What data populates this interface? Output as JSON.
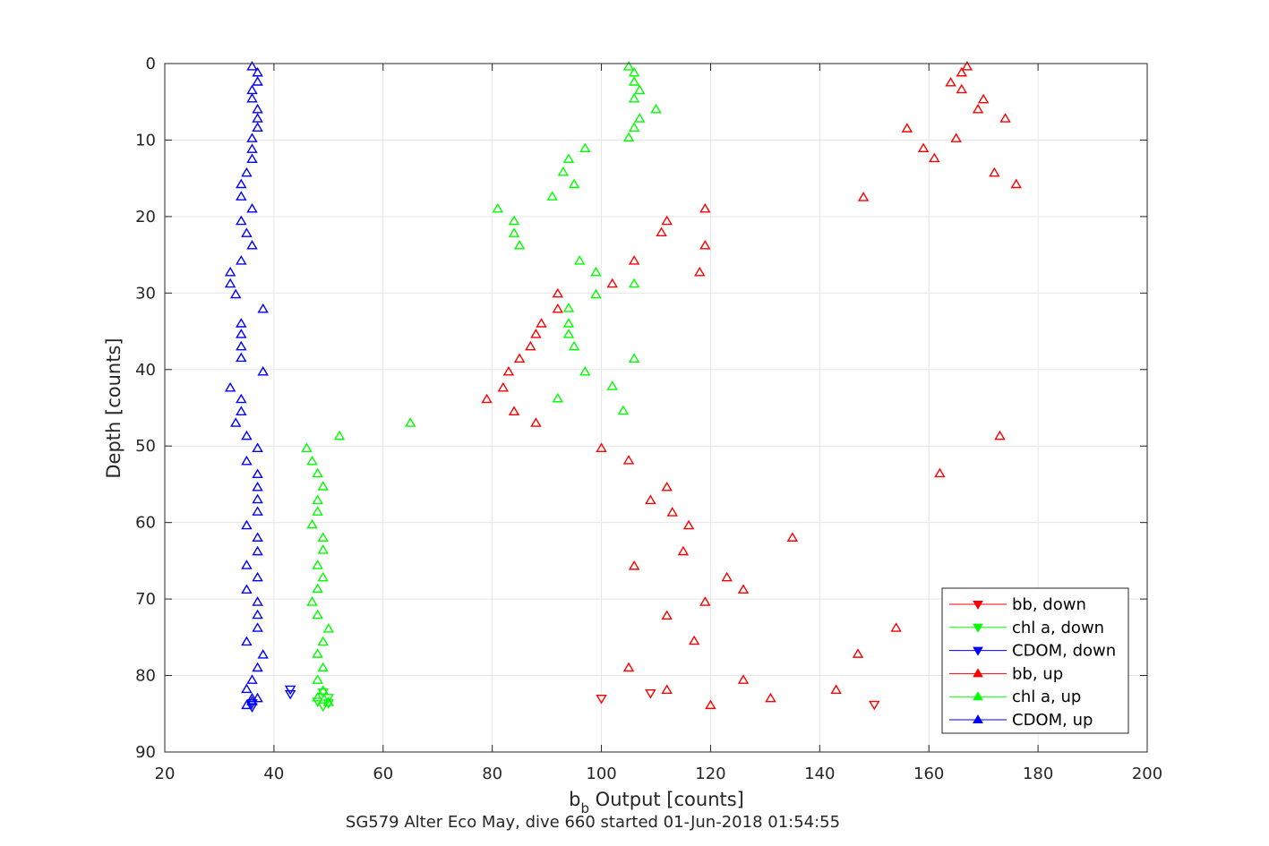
{
  "chart_data": {
    "type": "scatter",
    "title": "",
    "xlabel_main": "b",
    "xlabel_sub": "b",
    "xlabel_rest": " Output [counts]",
    "ylabel": "Depth [counts]",
    "caption": "SG579 Alter Eco May, dive 660 started 01-Jun-2018 01:54:55",
    "xlim": [
      20,
      200
    ],
    "ylim": [
      0,
      90
    ],
    "y_reversed": true,
    "grid": true,
    "x_ticks": [
      "20",
      "40",
      "60",
      "80",
      "100",
      "120",
      "140",
      "160",
      "180",
      "200"
    ],
    "y_ticks": [
      "0",
      "10",
      "20",
      "30",
      "40",
      "50",
      "60",
      "70",
      "80",
      "90"
    ],
    "legend_position": "bottom-right",
    "series": [
      {
        "name": "bb, down",
        "color": "#ff0000",
        "marker": "triangle-down",
        "points": [
          [
            100,
            83.0
          ],
          [
            109,
            82.3
          ],
          [
            150,
            83.8
          ]
        ]
      },
      {
        "name": "chl a, down",
        "color": "#00ff00",
        "marker": "triangle-down",
        "points": [
          [
            49,
            82.2
          ],
          [
            50,
            82.9
          ],
          [
            48,
            83.4
          ],
          [
            49,
            84.0
          ],
          [
            50,
            83.6
          ]
        ]
      },
      {
        "name": "CDOM, down",
        "color": "#0000ff",
        "marker": "triangle-down",
        "points": [
          [
            43,
            81.8
          ],
          [
            43,
            82.4
          ],
          [
            36,
            83.6
          ],
          [
            36,
            84.1
          ]
        ]
      },
      {
        "name": "bb, up",
        "color": "#ff0000",
        "marker": "triangle-up",
        "points": [
          [
            167,
            0.4
          ],
          [
            166,
            1.2
          ],
          [
            164,
            2.5
          ],
          [
            166,
            3.4
          ],
          [
            170,
            4.7
          ],
          [
            169,
            6.0
          ],
          [
            174,
            7.2
          ],
          [
            156,
            8.5
          ],
          [
            165,
            9.8
          ],
          [
            159,
            11.1
          ],
          [
            161,
            12.4
          ],
          [
            172,
            14.3
          ],
          [
            176,
            15.8
          ],
          [
            148,
            17.5
          ],
          [
            119,
            19.0
          ],
          [
            112,
            20.6
          ],
          [
            111,
            22.1
          ],
          [
            119,
            23.8
          ],
          [
            106,
            25.8
          ],
          [
            118,
            27.3
          ],
          [
            102,
            28.8
          ],
          [
            92,
            30.1
          ],
          [
            92,
            32.1
          ],
          [
            89,
            34.0
          ],
          [
            88,
            35.4
          ],
          [
            87,
            37.0
          ],
          [
            85,
            38.6
          ],
          [
            83,
            40.3
          ],
          [
            82,
            42.4
          ],
          [
            79,
            43.9
          ],
          [
            84,
            45.5
          ],
          [
            88,
            47.0
          ],
          [
            173,
            48.7
          ],
          [
            100,
            50.3
          ],
          [
            105,
            51.9
          ],
          [
            162,
            53.6
          ],
          [
            112,
            55.4
          ],
          [
            109,
            57.1
          ],
          [
            113,
            58.7
          ],
          [
            116,
            60.4
          ],
          [
            135,
            62.0
          ],
          [
            115,
            63.8
          ],
          [
            106,
            65.7
          ],
          [
            123,
            67.2
          ],
          [
            126,
            68.8
          ],
          [
            119,
            70.4
          ],
          [
            112,
            72.2
          ],
          [
            154,
            73.8
          ],
          [
            117,
            75.5
          ],
          [
            147,
            77.2
          ],
          [
            105,
            79.0
          ],
          [
            126,
            80.6
          ],
          [
            143,
            81.9
          ],
          [
            112,
            81.9
          ],
          [
            131,
            83.0
          ],
          [
            120,
            83.9
          ]
        ]
      },
      {
        "name": "chl a, up",
        "color": "#00ff00",
        "marker": "triangle-up",
        "points": [
          [
            105,
            0.4
          ],
          [
            106,
            1.2
          ],
          [
            106,
            2.4
          ],
          [
            107,
            3.5
          ],
          [
            106,
            4.6
          ],
          [
            110,
            6.0
          ],
          [
            107,
            7.2
          ],
          [
            106,
            8.4
          ],
          [
            105,
            9.7
          ],
          [
            97,
            11.1
          ],
          [
            94,
            12.5
          ],
          [
            93,
            14.2
          ],
          [
            95,
            15.8
          ],
          [
            91,
            17.4
          ],
          [
            81,
            19.0
          ],
          [
            84,
            20.6
          ],
          [
            84,
            22.2
          ],
          [
            85,
            23.8
          ],
          [
            96,
            25.8
          ],
          [
            99,
            27.3
          ],
          [
            106,
            28.8
          ],
          [
            99,
            30.2
          ],
          [
            94,
            32.0
          ],
          [
            94,
            34.0
          ],
          [
            94,
            35.4
          ],
          [
            95,
            37.0
          ],
          [
            106,
            38.6
          ],
          [
            97,
            40.3
          ],
          [
            102,
            42.2
          ],
          [
            92,
            43.8
          ],
          [
            104,
            45.4
          ],
          [
            65,
            47.0
          ],
          [
            52,
            48.7
          ],
          [
            46,
            50.3
          ],
          [
            47,
            52.0
          ],
          [
            48,
            53.6
          ],
          [
            49,
            55.3
          ],
          [
            48,
            57.1
          ],
          [
            48,
            58.6
          ],
          [
            47,
            60.3
          ],
          [
            49,
            62.0
          ],
          [
            49,
            63.6
          ],
          [
            48,
            65.6
          ],
          [
            49,
            67.2
          ],
          [
            48,
            68.7
          ],
          [
            47,
            70.4
          ],
          [
            48,
            72.1
          ],
          [
            50,
            73.9
          ],
          [
            49,
            75.6
          ],
          [
            48,
            77.2
          ],
          [
            49,
            79.0
          ],
          [
            48,
            80.6
          ],
          [
            49,
            82.0
          ],
          [
            48,
            82.9
          ],
          [
            50,
            83.5
          ]
        ]
      },
      {
        "name": "CDOM, up",
        "color": "#0000ff",
        "marker": "triangle-up",
        "points": [
          [
            36,
            0.4
          ],
          [
            37,
            1.2
          ],
          [
            37,
            2.4
          ],
          [
            36,
            3.5
          ],
          [
            36,
            4.6
          ],
          [
            37,
            6.0
          ],
          [
            37,
            7.2
          ],
          [
            37,
            8.4
          ],
          [
            36,
            9.8
          ],
          [
            36,
            11.2
          ],
          [
            36,
            12.5
          ],
          [
            35,
            14.3
          ],
          [
            34,
            15.8
          ],
          [
            34,
            17.4
          ],
          [
            36,
            19.0
          ],
          [
            34,
            20.6
          ],
          [
            35,
            22.2
          ],
          [
            36,
            23.8
          ],
          [
            34,
            25.8
          ],
          [
            32,
            27.3
          ],
          [
            32,
            28.8
          ],
          [
            33,
            30.2
          ],
          [
            38,
            32.1
          ],
          [
            34,
            34.0
          ],
          [
            34,
            35.4
          ],
          [
            34,
            37.0
          ],
          [
            34,
            38.5
          ],
          [
            38,
            40.3
          ],
          [
            32,
            42.4
          ],
          [
            34,
            43.9
          ],
          [
            34,
            45.5
          ],
          [
            33,
            47.0
          ],
          [
            35,
            48.7
          ],
          [
            37,
            50.3
          ],
          [
            35,
            52.0
          ],
          [
            37,
            53.7
          ],
          [
            37,
            55.4
          ],
          [
            37,
            57.0
          ],
          [
            37,
            58.6
          ],
          [
            35,
            60.4
          ],
          [
            37,
            62.0
          ],
          [
            37,
            63.8
          ],
          [
            35,
            65.6
          ],
          [
            37,
            67.2
          ],
          [
            35,
            68.8
          ],
          [
            37,
            70.4
          ],
          [
            37,
            72.1
          ],
          [
            37,
            73.8
          ],
          [
            35,
            75.6
          ],
          [
            38,
            77.3
          ],
          [
            37,
            79.0
          ],
          [
            36,
            80.6
          ],
          [
            35,
            81.8
          ],
          [
            36,
            83.0
          ],
          [
            37,
            83.0
          ],
          [
            36,
            83.4
          ],
          [
            35,
            83.9
          ]
        ]
      }
    ]
  }
}
